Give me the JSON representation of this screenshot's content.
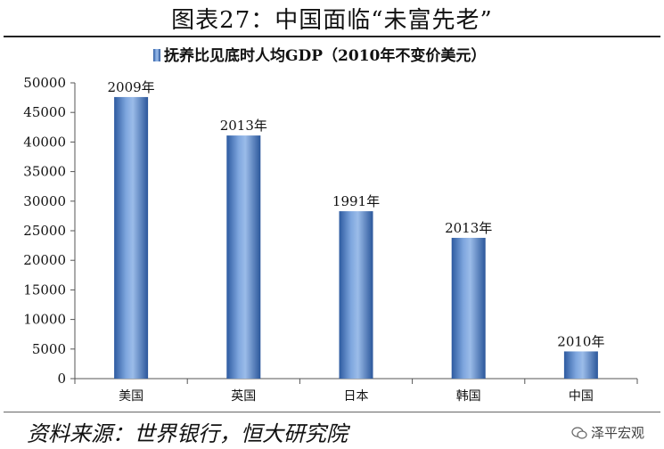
{
  "page": {
    "title": "图表27：中国面临“未富先老”",
    "source": "资料来源：世界银行，恒大研究院",
    "watermark": "泽平宏观"
  },
  "chart_data": {
    "type": "bar",
    "legend": "抚养比见底时人均GDP（2010年不变价美元）",
    "legend_position": "top-center",
    "categories": [
      "美国",
      "英国",
      "日本",
      "韩国",
      "中国"
    ],
    "values": [
      47600,
      41100,
      28300,
      23800,
      4600
    ],
    "data_labels": [
      "2009年",
      "2013年",
      "1991年",
      "2013年",
      "2010年"
    ],
    "y_ticks": [
      "0",
      "5000",
      "10000",
      "15000",
      "20000",
      "25000",
      "30000",
      "35000",
      "40000",
      "45000",
      "50000"
    ],
    "ylim": [
      0,
      50000
    ],
    "grid": false,
    "bar_color": "#3d6fb8"
  }
}
